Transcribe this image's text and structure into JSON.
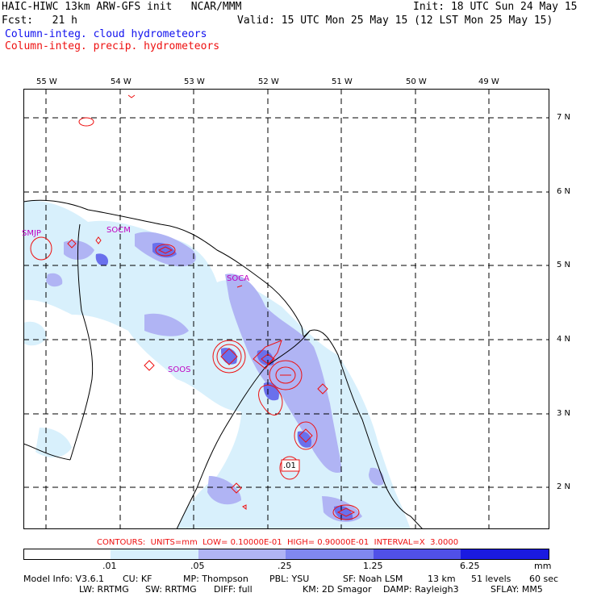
{
  "header": {
    "line1_left": "HAIC-HIWC 13km ARW-GFS init   NCAR/MMM",
    "line1_right": "Init: 18 UTC Sun 24 May 15",
    "line2_left": "Fcst:   21 h",
    "line2_right": "Valid: 15 UTC Mon 25 May 15 (12 LST Mon 25 May 15)",
    "line3": "Column-integ. cloud hydrometeors",
    "line4": "Column-integ. precip. hydrometeors"
  },
  "colors": {
    "cloud_field": "#1010ee",
    "precip_contour": "#ee1010",
    "station": "#c000c0"
  },
  "map": {
    "longitude_labels": [
      "55 W",
      "54 W",
      "53 W",
      "52 W",
      "51 W",
      "50 W",
      "49 W"
    ],
    "latitude_labels": [
      "7 N",
      "6 N",
      "5 N",
      "4 N",
      "3 N",
      "2 N"
    ],
    "stations": [
      "SMJP",
      "SOCM",
      "SOCA",
      "SOOS"
    ],
    "contour_label": ".01"
  },
  "contours_caption": "CONTOURS:  UNITS=mm  LOW= 0.10000E-01  HIGH= 0.90000E-01  INTERVAL=X  3.0000",
  "colorbar": {
    "tick_labels": [
      ".01",
      ".05",
      ".25",
      "1.25",
      "6.25"
    ],
    "units": "mm",
    "fill_colors": [
      "#ffffff",
      "#d8f0fc",
      "#b0b4f4",
      "#8088f0",
      "#5050e8",
      "#1a1ae0"
    ]
  },
  "model_info": {
    "line1": [
      "Model Info: V3.6.1",
      "CU: KF",
      "MP: Thompson",
      "PBL: YSU",
      "SF: Noah LSM",
      "13 km",
      "51 levels",
      "60 sec"
    ],
    "line2": [
      "LW: RRTMG",
      "SW: RRTMG",
      "DIFF: full",
      "KM: 2D Smagor",
      "DAMP: Rayleigh3",
      "SFLAY: MM5"
    ]
  }
}
